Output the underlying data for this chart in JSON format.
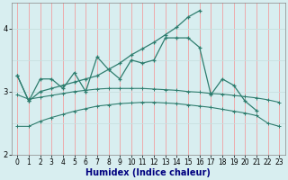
{
  "xlabel": "Humidex (Indice chaleur)",
  "x": [
    0,
    1,
    2,
    3,
    4,
    5,
    6,
    7,
    8,
    9,
    10,
    11,
    12,
    13,
    14,
    15,
    16,
    17,
    18,
    19,
    20,
    21,
    22,
    23
  ],
  "y_zigzag": [
    3.25,
    2.85,
    3.2,
    3.2,
    3.05,
    3.3,
    3.0,
    3.55,
    3.35,
    3.2,
    3.5,
    3.45,
    3.5,
    3.85,
    3.85,
    3.85,
    3.7,
    2.95,
    3.2,
    3.1,
    2.85,
    2.7,
    null,
    null
  ],
  "y_rising": [
    3.25,
    2.85,
    3.0,
    3.05,
    3.1,
    3.15,
    3.2,
    3.25,
    3.35,
    3.45,
    3.58,
    3.68,
    3.78,
    3.9,
    4.02,
    4.18,
    4.28,
    null,
    null,
    null,
    null,
    null,
    null,
    null
  ],
  "y_bell_low": [
    2.45,
    2.45,
    2.53,
    2.59,
    2.64,
    2.69,
    2.73,
    2.77,
    2.79,
    2.81,
    2.82,
    2.83,
    2.83,
    2.82,
    2.81,
    2.79,
    2.77,
    2.75,
    2.72,
    2.69,
    2.66,
    2.62,
    2.5,
    2.45
  ],
  "y_bell_mid": [
    2.95,
    2.88,
    2.91,
    2.94,
    2.97,
    3.0,
    3.02,
    3.04,
    3.05,
    3.05,
    3.05,
    3.05,
    3.04,
    3.03,
    3.02,
    3.0,
    2.99,
    2.97,
    2.96,
    2.94,
    2.92,
    2.9,
    2.87,
    2.83
  ],
  "bg_color": "#d8eef0",
  "line_color": "#2e7d6e",
  "grid_color_v": "#f0a0a0",
  "grid_color_h": "#c8e0e0",
  "ylim": [
    2.0,
    4.4
  ],
  "yticks": [
    2,
    3,
    4
  ],
  "xlabel_color": "#000080",
  "xlabel_fontsize": 7,
  "tick_fontsize": 5.5
}
